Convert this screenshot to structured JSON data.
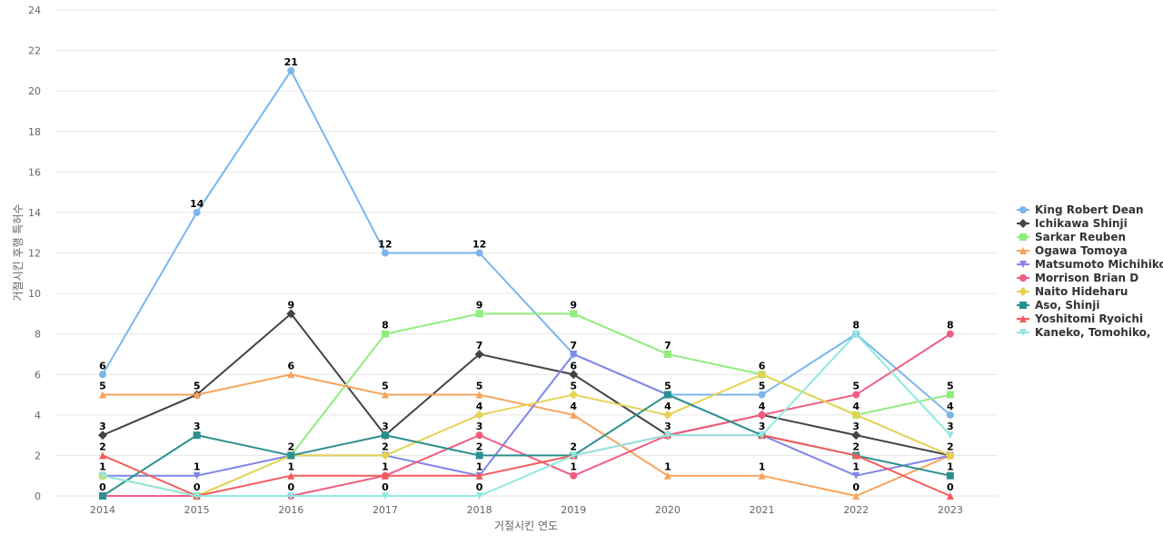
{
  "chart_data": {
    "type": "line",
    "title": "",
    "xlabel": "거절시킨 연도",
    "ylabel": "거절시킨 후행 특허수",
    "categories": [
      "2014",
      "2015",
      "2016",
      "2017",
      "2018",
      "2019",
      "2020",
      "2021",
      "2022",
      "2023"
    ],
    "ylim": [
      0,
      24
    ],
    "yticks": [
      0,
      2,
      4,
      6,
      8,
      10,
      12,
      14,
      16,
      18,
      20,
      22,
      24
    ],
    "grid": true,
    "legend_position": "right",
    "series": [
      {
        "name": "King Robert Dean",
        "color": "#7cb5ec",
        "marker": "circle",
        "values": [
          6,
          14,
          21,
          12,
          12,
          7,
          5,
          5,
          8,
          4
        ]
      },
      {
        "name": "Ichikawa Shinji",
        "color": "#434348",
        "marker": "diamond",
        "values": [
          3,
          5,
          9,
          3,
          7,
          6,
          3,
          4,
          3,
          2
        ]
      },
      {
        "name": "Sarkar Reuben",
        "color": "#90ed7d",
        "marker": "square",
        "values": [
          1,
          0,
          2,
          8,
          9,
          9,
          7,
          6,
          4,
          5
        ]
      },
      {
        "name": "Ogawa Tomoya",
        "color": "#f7a35c",
        "marker": "triangle",
        "values": [
          5,
          5,
          6,
          5,
          5,
          4,
          1,
          1,
          0,
          2
        ]
      },
      {
        "name": "Matsumoto Michihiko",
        "color": "#8085e9",
        "marker": "triangle-down",
        "values": [
          1,
          1,
          2,
          2,
          1,
          7,
          5,
          3,
          1,
          2
        ]
      },
      {
        "name": "Morrison Brian D",
        "color": "#f15c80",
        "marker": "circle",
        "values": [
          0,
          0,
          0,
          1,
          3,
          1,
          3,
          4,
          5,
          8
        ]
      },
      {
        "name": "Naito Hideharu",
        "color": "#e4d354",
        "marker": "diamond",
        "values": [
          1,
          0,
          2,
          2,
          4,
          5,
          4,
          6,
          4,
          2
        ]
      },
      {
        "name": "Aso, Shinji",
        "color": "#2b908f",
        "marker": "square",
        "values": [
          0,
          3,
          2,
          3,
          2,
          2,
          5,
          3,
          2,
          1
        ]
      },
      {
        "name": "Yoshitomi Ryoichi",
        "color": "#f45b5b",
        "marker": "triangle",
        "values": [
          2,
          0,
          1,
          1,
          1,
          2,
          3,
          3,
          2,
          0
        ]
      },
      {
        "name": "Kaneko, Tomohiko,",
        "color": "#91e8e1",
        "marker": "triangle-down",
        "values": [
          1,
          0,
          0,
          0,
          0,
          2,
          3,
          3,
          8,
          3
        ]
      }
    ],
    "data_labels": [
      {
        "category": "2014",
        "labels": [
          "6",
          "5",
          "3",
          "2",
          "1",
          "0"
        ]
      },
      {
        "category": "2015",
        "labels": [
          "14",
          "5",
          "3",
          "1",
          "0"
        ]
      },
      {
        "category": "2016",
        "labels": [
          "21",
          "9",
          "6",
          "2",
          "1",
          "0"
        ]
      },
      {
        "category": "2017",
        "labels": [
          "12",
          "8",
          "5",
          "3",
          "2",
          "1",
          "0"
        ]
      },
      {
        "category": "2018",
        "labels": [
          "12",
          "9",
          "7",
          "5",
          "4",
          "3",
          "2",
          "1",
          "0"
        ]
      },
      {
        "category": "2019",
        "labels": [
          "9",
          "7",
          "6",
          "5",
          "4",
          "2",
          "1"
        ]
      },
      {
        "category": "2020",
        "labels": [
          "7",
          "5",
          "4",
          "3",
          "1"
        ]
      },
      {
        "category": "2021",
        "labels": [
          "6",
          "5",
          "4",
          "3",
          "1"
        ]
      },
      {
        "category": "2022",
        "labels": [
          "8",
          "5",
          "4",
          "3",
          "2",
          "1",
          "0"
        ]
      },
      {
        "category": "2023",
        "labels": [
          "8",
          "5",
          "4",
          "3",
          "2",
          "1",
          "0"
        ]
      }
    ]
  }
}
